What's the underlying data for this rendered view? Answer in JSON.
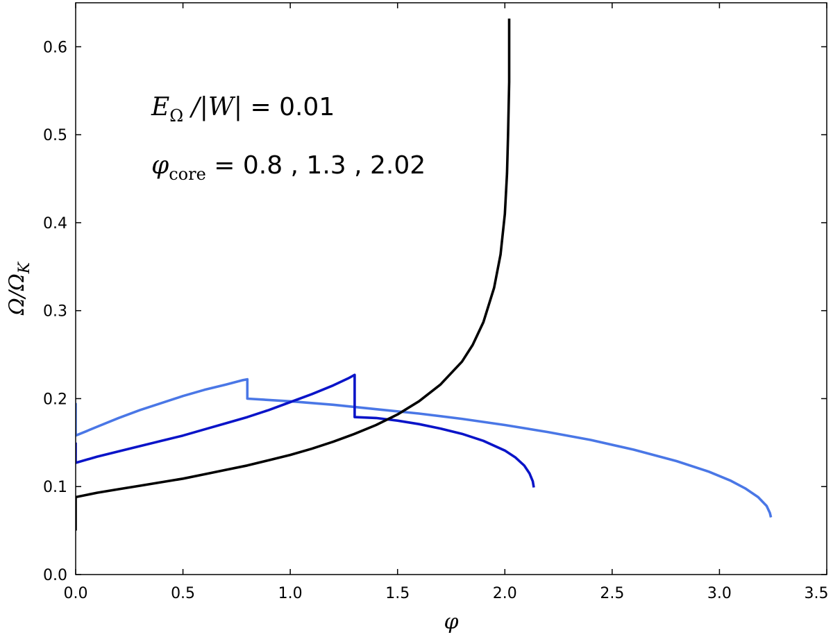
{
  "chart_data": {
    "type": "line",
    "title": "",
    "xlabel": "φ",
    "ylabel": "Ω/Ω",
    "ylabel_sub": "K",
    "xlim": [
      0.0,
      3.5
    ],
    "ylim": [
      0.0,
      0.65
    ],
    "xticks": [
      "0.0",
      "0.5",
      "1.0",
      "1.5",
      "2.0",
      "2.5",
      "3.0",
      "3.5"
    ],
    "yticks": [
      "0.0",
      "0.1",
      "0.2",
      "0.3",
      "0.4",
      "0.5",
      "0.6"
    ],
    "xtick_values": [
      0.0,
      0.5,
      1.0,
      1.5,
      2.0,
      2.5,
      3.0,
      3.5
    ],
    "ytick_values": [
      0.0,
      0.1,
      0.2,
      0.3,
      0.4,
      0.5,
      0.6
    ],
    "grid": false,
    "annotations": {
      "line1_math": "E",
      "line1_sub": "Ω",
      "line1_math2": " /|W|",
      "line1_text": " = 0.01",
      "line2_math": "φ",
      "line2_sub": "core",
      "line2_text": " = 0.8 , 1.3 , 2.02"
    },
    "series": [
      {
        "color": "#4a77e6",
        "points": [
          [
            0.0,
            0.195
          ],
          [
            0.0,
            0.158
          ],
          [
            0.05,
            0.163
          ],
          [
            0.1,
            0.168
          ],
          [
            0.2,
            0.178
          ],
          [
            0.3,
            0.187
          ],
          [
            0.4,
            0.195
          ],
          [
            0.5,
            0.203
          ],
          [
            0.6,
            0.21
          ],
          [
            0.7,
            0.216
          ],
          [
            0.78,
            0.221
          ],
          [
            0.8,
            0.222
          ],
          [
            0.8,
            0.2
          ],
          [
            1.0,
            0.197
          ],
          [
            1.2,
            0.193
          ],
          [
            1.4,
            0.188
          ],
          [
            1.6,
            0.183
          ],
          [
            1.8,
            0.177
          ],
          [
            2.0,
            0.17
          ],
          [
            2.2,
            0.162
          ],
          [
            2.4,
            0.153
          ],
          [
            2.6,
            0.142
          ],
          [
            2.8,
            0.129
          ],
          [
            2.95,
            0.117
          ],
          [
            3.05,
            0.107
          ],
          [
            3.12,
            0.098
          ],
          [
            3.18,
            0.088
          ],
          [
            3.22,
            0.078
          ],
          [
            3.235,
            0.07
          ],
          [
            3.24,
            0.065
          ]
        ]
      },
      {
        "color": "#0a14c8",
        "points": [
          [
            0.0,
            0.15
          ],
          [
            0.0,
            0.127
          ],
          [
            0.1,
            0.134
          ],
          [
            0.2,
            0.14
          ],
          [
            0.3,
            0.146
          ],
          [
            0.4,
            0.152
          ],
          [
            0.5,
            0.158
          ],
          [
            0.6,
            0.165
          ],
          [
            0.7,
            0.172
          ],
          [
            0.8,
            0.179
          ],
          [
            0.9,
            0.187
          ],
          [
            1.0,
            0.196
          ],
          [
            1.1,
            0.205
          ],
          [
            1.2,
            0.215
          ],
          [
            1.27,
            0.223
          ],
          [
            1.3,
            0.227
          ],
          [
            1.3,
            0.179
          ],
          [
            1.4,
            0.178
          ],
          [
            1.5,
            0.175
          ],
          [
            1.6,
            0.171
          ],
          [
            1.7,
            0.166
          ],
          [
            1.8,
            0.16
          ],
          [
            1.9,
            0.152
          ],
          [
            2.0,
            0.141
          ],
          [
            2.05,
            0.133
          ],
          [
            2.09,
            0.124
          ],
          [
            2.115,
            0.115
          ],
          [
            2.13,
            0.106
          ],
          [
            2.135,
            0.099
          ]
        ]
      },
      {
        "color": "#000000",
        "points": [
          [
            0.0,
            0.05
          ],
          [
            0.0,
            0.088
          ],
          [
            0.1,
            0.093
          ],
          [
            0.2,
            0.097
          ],
          [
            0.3,
            0.101
          ],
          [
            0.4,
            0.105
          ],
          [
            0.5,
            0.109
          ],
          [
            0.6,
            0.114
          ],
          [
            0.7,
            0.119
          ],
          [
            0.8,
            0.124
          ],
          [
            0.9,
            0.13
          ],
          [
            1.0,
            0.136
          ],
          [
            1.1,
            0.143
          ],
          [
            1.2,
            0.151
          ],
          [
            1.3,
            0.16
          ],
          [
            1.4,
            0.17
          ],
          [
            1.5,
            0.182
          ],
          [
            1.6,
            0.197
          ],
          [
            1.7,
            0.216
          ],
          [
            1.8,
            0.242
          ],
          [
            1.85,
            0.261
          ],
          [
            1.9,
            0.287
          ],
          [
            1.95,
            0.326
          ],
          [
            1.98,
            0.364
          ],
          [
            2.0,
            0.41
          ],
          [
            2.01,
            0.456
          ],
          [
            2.015,
            0.5
          ],
          [
            2.02,
            0.56
          ],
          [
            2.02,
            0.632
          ]
        ]
      }
    ]
  }
}
